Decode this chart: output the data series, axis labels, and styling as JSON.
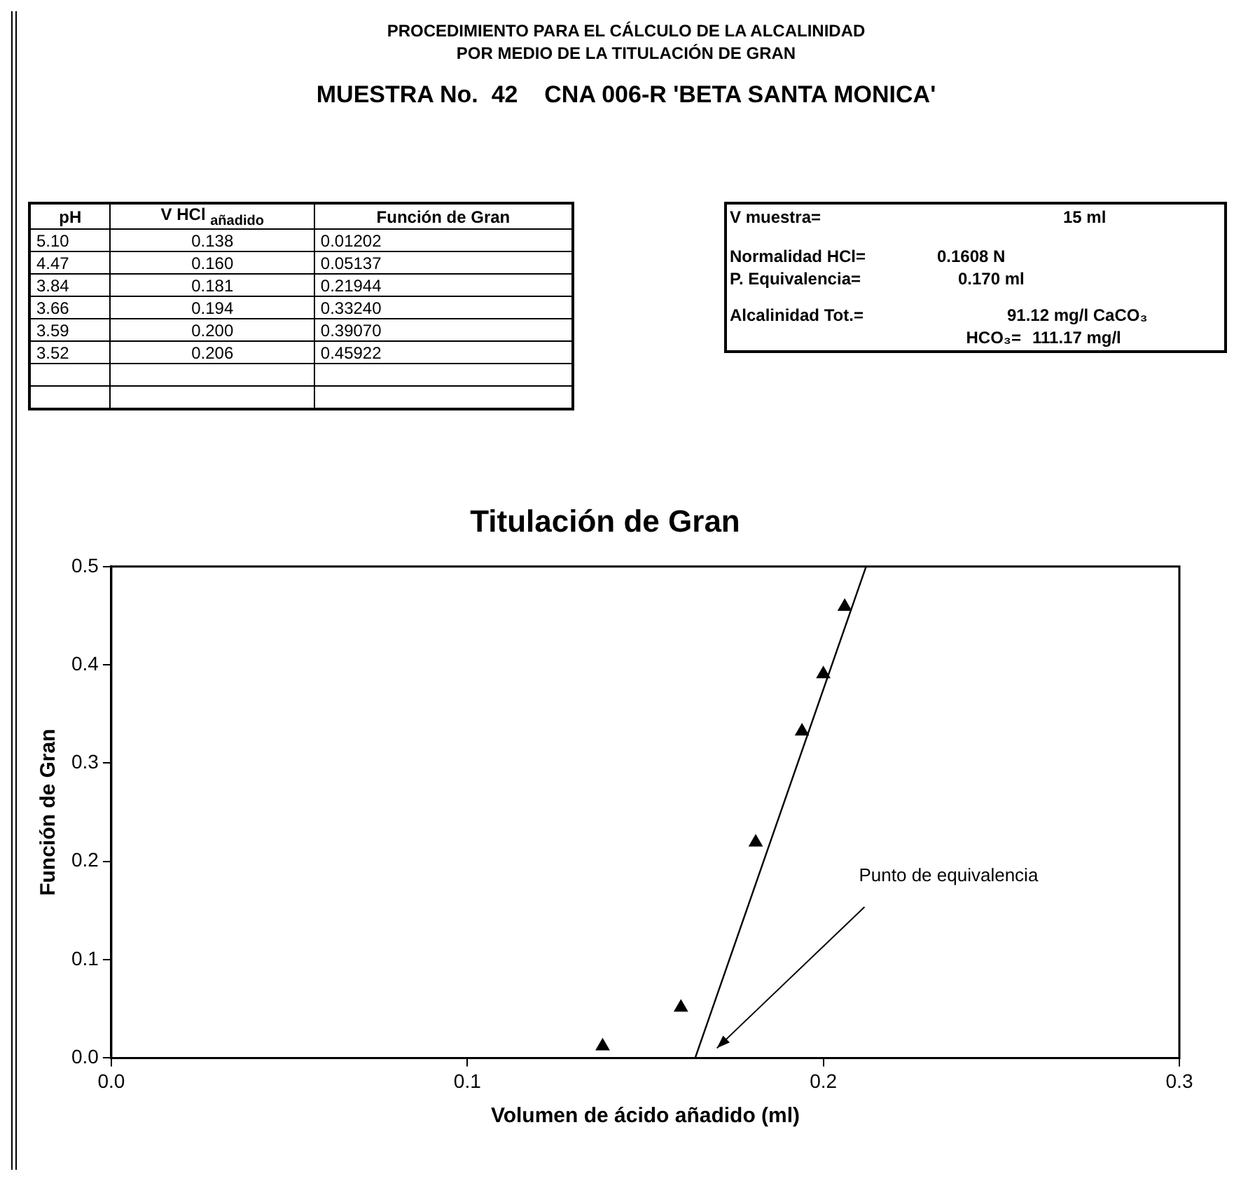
{
  "chart_data": {
    "type": "scatter",
    "title": "Titulación de Gran",
    "xlabel": "Volumen de ácido añadido (ml)",
    "ylabel": "Función de Gran",
    "xlim": [
      0,
      0.3
    ],
    "xticks": [
      {
        "value": 0,
        "label": "0.0"
      },
      0.1,
      0.2,
      0.3
    ],
    "ylim": [
      0,
      0.5
    ],
    "yticks": [
      {
        "value": 0,
        "label": "0.0"
      },
      0.1,
      0.2,
      0.3,
      0.4,
      0.5
    ],
    "grid": false,
    "legend": false,
    "series": [
      {
        "type": "scatter",
        "marker": "triangle",
        "color": "#000000",
        "x": [
          0.138,
          0.16,
          0.181,
          0.194,
          0.2,
          0.206
        ],
        "values": [
          0.01202,
          0.05137,
          0.21944,
          0.3324,
          0.3907,
          0.45922
        ]
      },
      {
        "type": "line",
        "color": "#000000",
        "x": [
          0.164,
          0.212
        ],
        "values": [
          0,
          0.5
        ]
      }
    ],
    "annotations": [
      "PROCEDIMIENTO PARA EL CÁLCULO DE LA ALCALINIDAD",
      "POR MEDIO DE LA TITULACIÓN DE GRAN",
      "MUESTRA No.  42    CNA 006-R 'BETA SANTA MONICA'",
      "pH",
      "V HCl $_{añadido}$",
      "Función de Gran",
      "5.10",
      "0.138",
      "0.01202",
      "4.47",
      "0.160",
      "0.05137",
      "3.84",
      "0.181",
      "0.21944",
      "3.66",
      "0.194",
      "0.33240",
      "3.59",
      "0.200",
      "0.39070",
      "3.52",
      "0.206",
      "0.45922",
      "V muestra=",
      "15 ml",
      "Normalidad HCl=",
      "0.1608 N",
      "P. Equivalencia=",
      "0.170 ml",
      "Alcalinidad Tot.=",
      "91.12 mg/l CaCO₃",
      "HCO₃=",
      "111.17 mg/l",
      "Punto de equivalencia"
    ]
  }
}
